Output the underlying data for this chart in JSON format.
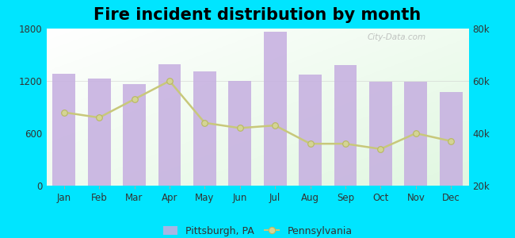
{
  "months": [
    "Jan",
    "Feb",
    "Mar",
    "Apr",
    "May",
    "Jun",
    "Jul",
    "Aug",
    "Sep",
    "Oct",
    "Nov",
    "Dec"
  ],
  "pittsburgh_values": [
    1280,
    1230,
    1160,
    1390,
    1310,
    1200,
    1760,
    1270,
    1380,
    1190,
    1190,
    1070
  ],
  "pennsylvania_values": [
    48000,
    46000,
    53000,
    60000,
    44000,
    42000,
    43000,
    36000,
    36000,
    34000,
    40000,
    37000
  ],
  "bar_color": "#c5aee0",
  "line_color": "#c8c87a",
  "marker_color": "#d4d494",
  "marker_edge_color": "#b8b860",
  "background_color_fig": "#00e5ff",
  "title": "Fire incident distribution by month",
  "title_fontsize": 15,
  "left_ylim": [
    0,
    1800
  ],
  "right_ylim": [
    20000,
    80000
  ],
  "left_yticks": [
    0,
    600,
    1200,
    1800
  ],
  "right_yticks": [
    20000,
    40000,
    60000,
    80000
  ],
  "right_ytick_labels": [
    "20k",
    "40k",
    "60k",
    "80k"
  ],
  "legend_pittsburgh": "Pittsburgh, PA",
  "legend_pennsylvania": "Pennsylvania",
  "watermark": "City-Data.com"
}
